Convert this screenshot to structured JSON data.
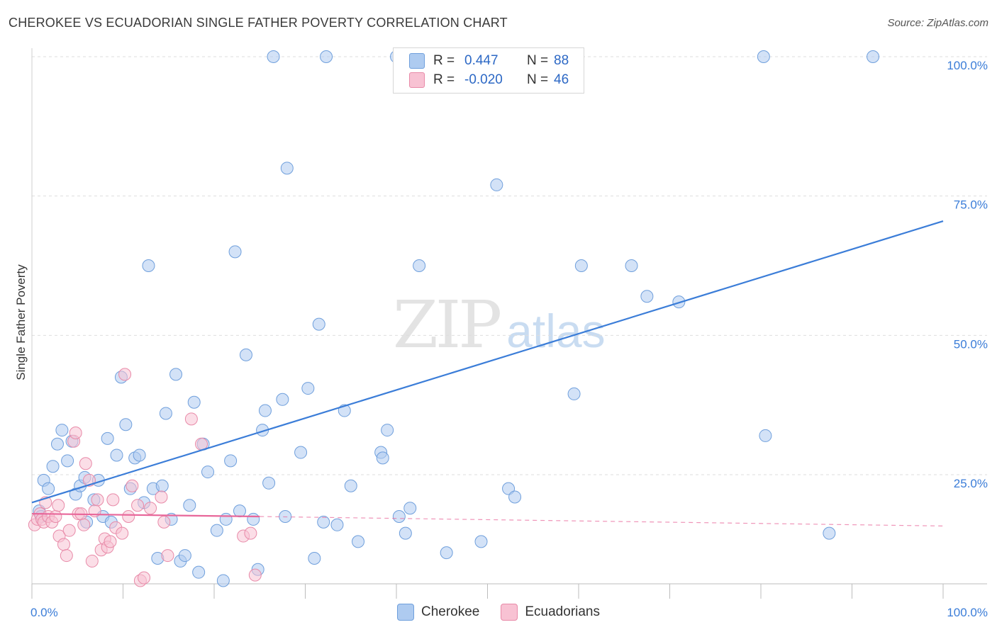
{
  "header": {
    "title": "CHEROKEE VS ECUADORIAN SINGLE FATHER POVERTY CORRELATION CHART",
    "source": "Source: ZipAtlas.com"
  },
  "legend": {
    "rows": [
      {
        "r_label": "R =",
        "r_value": "0.447",
        "n_label": "N =",
        "n_value": "88",
        "color": "#aecbf0",
        "border": "#6f9fdc"
      },
      {
        "r_label": "R =",
        "r_value": "-0.020",
        "n_label": "N =",
        "n_value": "46",
        "color": "#f8c2d3",
        "border": "#e88aa8"
      }
    ]
  },
  "bottom_legend": {
    "items": [
      {
        "label": "Cherokee",
        "color": "#aecbf0",
        "border": "#6f9fdc"
      },
      {
        "label": "Ecuadorians",
        "color": "#f8c2d3",
        "border": "#e88aa8"
      }
    ]
  },
  "watermark": {
    "zip": "ZIP",
    "atlas": "atlas"
  },
  "chart_data": {
    "type": "scatter",
    "title": "CHEROKEE VS ECUADORIAN SINGLE FATHER POVERTY CORRELATION CHART",
    "xlabel": "",
    "ylabel": "Single Father Poverty",
    "xlim": [
      0,
      100
    ],
    "ylim": [
      0,
      105
    ],
    "x_tick_labels": [
      "0.0%",
      "100.0%"
    ],
    "y_ticks": [
      25,
      50,
      75,
      100
    ],
    "y_tick_labels": [
      "25.0%",
      "50.0%",
      "75.0%",
      "100.0%"
    ],
    "grid": "horizontal dashed",
    "legend_placement": "top-center",
    "colors": {
      "cherokee": "#3b7dd8",
      "ecuadorians": "#e8679a"
    },
    "series": [
      {
        "name": "Cherokee",
        "color": "#aecbf0",
        "stroke": "#6f9fdc",
        "trend": {
          "x0": 0,
          "y0": 20.0,
          "x1": 100,
          "y1": 70.5,
          "color": "#3b7dd8"
        },
        "points": [
          [
            0.8,
            18.5
          ],
          [
            1.0,
            17.5
          ],
          [
            1.3,
            24.0
          ],
          [
            1.8,
            22.5
          ],
          [
            2.3,
            26.5
          ],
          [
            2.8,
            30.5
          ],
          [
            3.3,
            33.0
          ],
          [
            3.9,
            27.5
          ],
          [
            4.4,
            31.0
          ],
          [
            4.8,
            21.5
          ],
          [
            5.3,
            23.0
          ],
          [
            5.8,
            24.5
          ],
          [
            6.0,
            16.5
          ],
          [
            6.8,
            20.5
          ],
          [
            7.3,
            24.0
          ],
          [
            7.8,
            17.5
          ],
          [
            8.3,
            31.5
          ],
          [
            8.7,
            16.5
          ],
          [
            9.3,
            28.5
          ],
          [
            9.8,
            42.5
          ],
          [
            10.3,
            34.0
          ],
          [
            10.8,
            22.5
          ],
          [
            11.3,
            28.0
          ],
          [
            11.8,
            28.5
          ],
          [
            12.3,
            20.0
          ],
          [
            12.8,
            62.5
          ],
          [
            13.3,
            22.5
          ],
          [
            13.8,
            10.0
          ],
          [
            14.3,
            23.0
          ],
          [
            14.7,
            36.0
          ],
          [
            15.3,
            17.0
          ],
          [
            15.8,
            43.0
          ],
          [
            16.3,
            9.5
          ],
          [
            16.8,
            10.5
          ],
          [
            17.3,
            19.5
          ],
          [
            17.8,
            38.0
          ],
          [
            18.3,
            7.5
          ],
          [
            18.8,
            30.5
          ],
          [
            19.3,
            25.5
          ],
          [
            20.3,
            15.0
          ],
          [
            21.0,
            6.0
          ],
          [
            21.3,
            17.0
          ],
          [
            21.8,
            27.5
          ],
          [
            22.3,
            65.0
          ],
          [
            22.8,
            18.5
          ],
          [
            23.5,
            46.5
          ],
          [
            24.3,
            17.0
          ],
          [
            24.8,
            8.0
          ],
          [
            25.3,
            33.0
          ],
          [
            25.6,
            36.5
          ],
          [
            26.0,
            23.5
          ],
          [
            26.5,
            105.0
          ],
          [
            28.0,
            80.0
          ],
          [
            27.5,
            38.5
          ],
          [
            27.8,
            17.5
          ],
          [
            29.5,
            29.0
          ],
          [
            30.3,
            40.5
          ],
          [
            31.0,
            10.0
          ],
          [
            31.5,
            52.0
          ],
          [
            32.0,
            16.5
          ],
          [
            32.3,
            105.0
          ],
          [
            33.5,
            16.0
          ],
          [
            34.3,
            36.5
          ],
          [
            35.0,
            23.0
          ],
          [
            35.8,
            13.0
          ],
          [
            38.3,
            29.0
          ],
          [
            38.5,
            28.0
          ],
          [
            39.0,
            33.0
          ],
          [
            40.3,
            17.5
          ],
          [
            41.0,
            14.5
          ],
          [
            41.5,
            19.0
          ],
          [
            42.5,
            62.5
          ],
          [
            45.5,
            11.0
          ],
          [
            49.3,
            13.0
          ],
          [
            51.0,
            77.0
          ],
          [
            52.3,
            22.5
          ],
          [
            53.0,
            21.0
          ],
          [
            59.5,
            39.5
          ],
          [
            60.3,
            62.5
          ],
          [
            65.8,
            62.5
          ],
          [
            67.5,
            57.0
          ],
          [
            71.0,
            56.0
          ],
          [
            80.3,
            105.0
          ],
          [
            80.5,
            32.0
          ],
          [
            87.5,
            14.5
          ],
          [
            92.3,
            105.0
          ],
          [
            52.5,
            100.5
          ],
          [
            40.0,
            100.5
          ]
        ]
      },
      {
        "name": "Ecuadorians",
        "color": "#f8c2d3",
        "stroke": "#e88aa8",
        "trend": {
          "x0": 0,
          "y0": 18.0,
          "x1": 25,
          "y1": 17.5,
          "color": "#e8679a",
          "dashed_to": {
            "x": 100,
            "y": 15.8
          }
        },
        "points": [
          [
            0.3,
            16.0
          ],
          [
            0.6,
            17.0
          ],
          [
            0.9,
            18.0
          ],
          [
            1.1,
            17.0
          ],
          [
            1.3,
            16.5
          ],
          [
            1.5,
            20.0
          ],
          [
            1.8,
            17.5
          ],
          [
            2.2,
            16.5
          ],
          [
            2.6,
            17.5
          ],
          [
            2.9,
            19.5
          ],
          [
            3.0,
            14.0
          ],
          [
            3.5,
            12.5
          ],
          [
            3.8,
            10.5
          ],
          [
            4.1,
            15.0
          ],
          [
            4.6,
            31.0
          ],
          [
            4.8,
            32.5
          ],
          [
            5.1,
            18.0
          ],
          [
            5.4,
            18.0
          ],
          [
            5.7,
            16.0
          ],
          [
            5.9,
            27.0
          ],
          [
            6.3,
            24.0
          ],
          [
            6.6,
            9.5
          ],
          [
            6.9,
            18.5
          ],
          [
            7.2,
            20.5
          ],
          [
            7.6,
            11.5
          ],
          [
            8.0,
            13.5
          ],
          [
            8.3,
            12.0
          ],
          [
            8.6,
            13.0
          ],
          [
            8.9,
            20.5
          ],
          [
            9.2,
            15.5
          ],
          [
            9.9,
            14.5
          ],
          [
            10.2,
            43.0
          ],
          [
            11.0,
            23.0
          ],
          [
            11.6,
            19.5
          ],
          [
            11.9,
            6.0
          ],
          [
            12.3,
            6.5
          ],
          [
            13.0,
            19.0
          ],
          [
            14.2,
            21.0
          ],
          [
            14.5,
            16.5
          ],
          [
            14.9,
            10.5
          ],
          [
            17.5,
            35.0
          ],
          [
            18.6,
            30.5
          ],
          [
            23.2,
            14.0
          ],
          [
            24.0,
            14.5
          ],
          [
            24.5,
            7.0
          ],
          [
            10.6,
            17.5
          ]
        ]
      }
    ]
  }
}
